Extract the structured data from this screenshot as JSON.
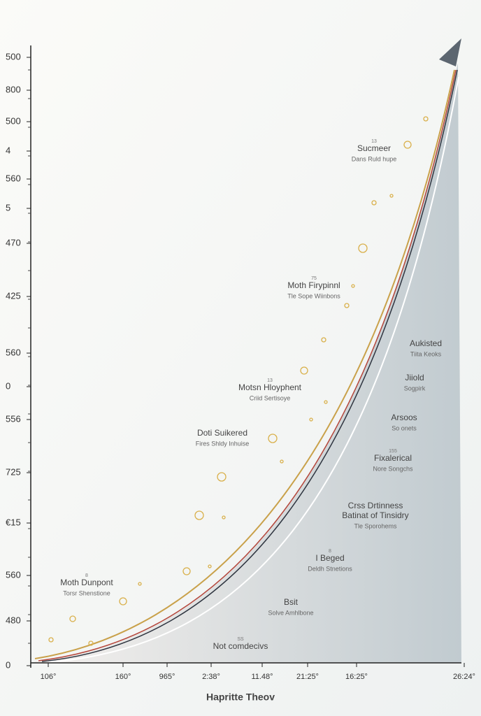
{
  "title": "Hapritte Theov",
  "y_labels": [
    "500",
    "800",
    "500",
    "4",
    "560",
    "5",
    "470",
    "425",
    "560",
    "0",
    "556",
    "725",
    "€15",
    "560",
    "480",
    "0"
  ],
  "x_labels": [
    "106°",
    "160°",
    "965°",
    "2:38°",
    "11.48°",
    "21:25°",
    "16:25°",
    "26:24°"
  ],
  "annotations": [
    {
      "number": "13",
      "title": "Sucmeer",
      "subtitle": "Dans Ruld hupe"
    },
    {
      "number": "75",
      "title": "Moth Firypinnl",
      "subtitle": "Tle Sope Wiinbons"
    },
    {
      "number": "13",
      "title": "Motsn Hloyphent",
      "subtitle": "Criid Sertisoye"
    },
    {
      "title": "Doti Suikered",
      "subtitle": "Fires Shldy Inhuise"
    },
    {
      "title": "Aukisted",
      "subtitle": "Tiita Keoks"
    },
    {
      "title": "Jiiold",
      "subtitle": "Sogpirk"
    },
    {
      "title": "Arsoos",
      "subtitle": "So onets"
    },
    {
      "number": "155",
      "title": "Fixalerical",
      "subtitle": "Nore Songchs"
    },
    {
      "title": "Crss Drtinness",
      "subtitle": "Batinat of Tinsidry",
      "note": "Tle Sporohems"
    },
    {
      "number": "8",
      "title": "I Beged",
      "subtitle": "Deldh Stnetions"
    },
    {
      "number": "8",
      "title": "Moth Dunpont",
      "subtitle": "Torsr Shenstione"
    },
    {
      "title": "Bsit",
      "subtitle": "Solve Amhlbone"
    },
    {
      "number": "SS",
      "title": "Not comdecivs"
    }
  ]
}
